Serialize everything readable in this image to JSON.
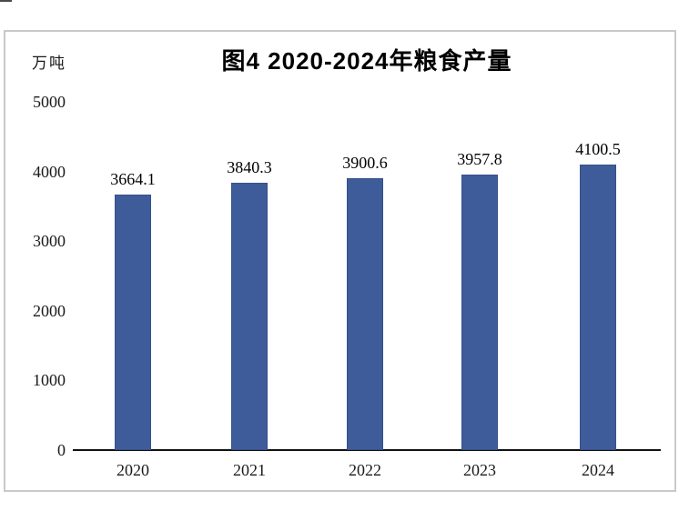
{
  "chart_data": {
    "type": "bar",
    "title": "图4 2020-2024年粮食产量",
    "unit_label": "万吨",
    "categories": [
      "2020",
      "2021",
      "2022",
      "2023",
      "2024"
    ],
    "values": [
      3664.1,
      3840.3,
      3900.6,
      3957.8,
      4100.5
    ],
    "data_labels": [
      "3664.1",
      "3840.3",
      "3900.6",
      "3957.8",
      "4100.5"
    ],
    "series_name": "粮食产量",
    "ylabel": "万吨",
    "xlabel": "",
    "ylim": [
      0,
      5000
    ],
    "yticks": [
      0,
      1000,
      2000,
      3000,
      4000,
      5000
    ],
    "grid": false,
    "legend_visible": false,
    "bar_color": "#3e5c9a",
    "bar_border_color": "#36508a",
    "axis_color": "#111111",
    "panel_border_color": "#c9c9c9"
  }
}
